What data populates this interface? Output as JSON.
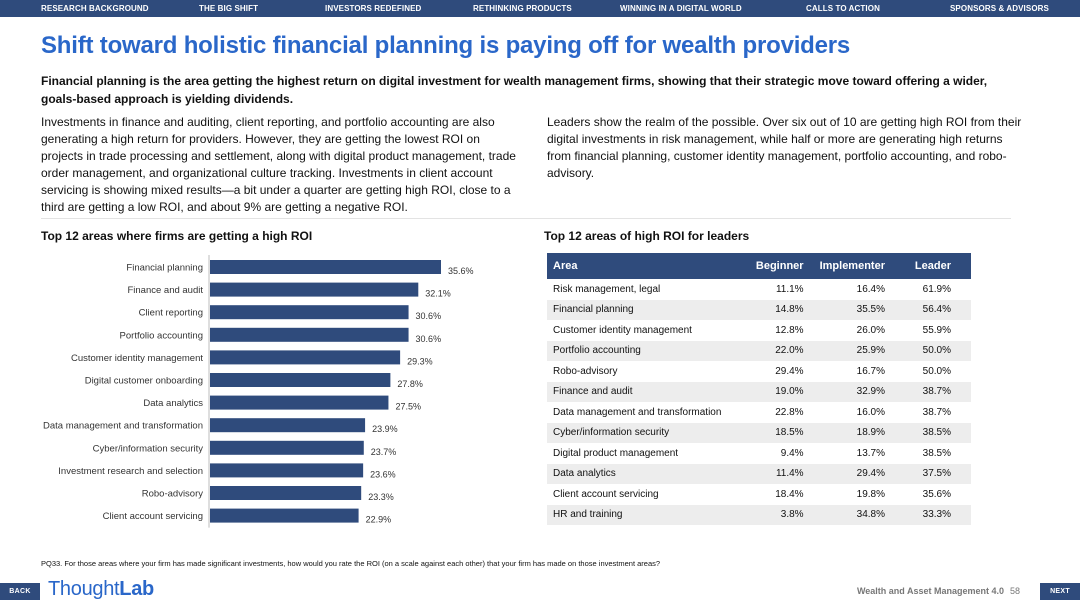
{
  "nav": {
    "items": [
      "RESEARCH BACKGROUND",
      "THE BIG SHIFT",
      "INVESTORS REDEFINED",
      "RETHINKING PRODUCTS",
      "WINNING IN A DIGITAL WORLD",
      "CALLS TO ACTION",
      "SPONSORS & ADVISORS"
    ]
  },
  "title": "Shift toward holistic financial planning is paying off for wealth providers",
  "subtitle": "Financial planning is the area getting the highest return on digital investment for wealth management firms, showing that their strategic move toward offering a wider, goals-based approach is yielding dividends.",
  "body_left": "Investments in finance and auditing, client reporting, and portfolio accounting are also generating a high return for providers. However, they are getting the lowest ROI on projects in trade processing and settlement, along with digital product management, trade order management, and organizational culture tracking. Investments in client account servicing is showing mixed results—a bit under a quarter are getting high ROI, close to a third are getting a low ROI, and about 9% are getting a negative ROI.",
  "body_right": "Leaders show the realm of the possible. Over six out of 10 are getting high ROI from their digital investments in risk management, while half or more are generating high returns from financial planning, customer identity management, portfolio accounting, and robo-advisory.",
  "chart_title": "Top 12 areas where firms are getting a high ROI",
  "table_title": "Top 12 areas of high ROI for leaders",
  "chart_data": {
    "type": "bar",
    "orientation": "horizontal",
    "title": "Top 12 areas where firms are getting a high ROI",
    "categories": [
      "Financial planning",
      "Finance and audit",
      "Client reporting",
      "Portfolio accounting",
      "Customer identity management",
      "Digital customer onboarding",
      "Data analytics",
      "Data management and transformation",
      "Cyber/information security",
      "Investment research and selection",
      "Robo-advisory",
      "Client account servicing"
    ],
    "values": [
      35.6,
      32.1,
      30.6,
      30.6,
      29.3,
      27.8,
      27.5,
      23.9,
      23.7,
      23.6,
      23.3,
      22.9
    ],
    "value_labels": [
      "35.6%",
      "32.1%",
      "30.6%",
      "30.6%",
      "29.3%",
      "27.8%",
      "27.5%",
      "23.9%",
      "23.7%",
      "23.6%",
      "23.3%",
      "22.9%"
    ],
    "xlim": [
      0,
      40
    ],
    "bar_color": "#2f4b7c"
  },
  "table": {
    "headers": [
      "Area",
      "Beginner",
      "Implementer",
      "Leader"
    ],
    "rows": [
      [
        "Risk management, legal",
        "11.1%",
        "16.4%",
        "61.9%"
      ],
      [
        "Financial planning",
        "14.8%",
        "35.5%",
        "56.4%"
      ],
      [
        "Customer identity  management",
        "12.8%",
        "26.0%",
        "55.9%"
      ],
      [
        "Portfolio accounting",
        "22.0%",
        "25.9%",
        "50.0%"
      ],
      [
        "Robo-advisory",
        "29.4%",
        "16.7%",
        "50.0%"
      ],
      [
        "Finance and audit",
        "19.0%",
        "32.9%",
        "38.7%"
      ],
      [
        "Data management and transformation",
        "22.8%",
        "16.0%",
        "38.7%"
      ],
      [
        "Cyber/information security",
        "18.5%",
        "18.9%",
        "38.5%"
      ],
      [
        "Digital product management",
        "9.4%",
        "13.7%",
        "38.5%"
      ],
      [
        "Data analytics",
        "11.4%",
        "29.4%",
        "37.5%"
      ],
      [
        "Client account servicing",
        "18.4%",
        "19.8%",
        "35.6%"
      ],
      [
        "HR and training",
        "3.8%",
        "34.8%",
        "33.3%"
      ]
    ]
  },
  "footnote": "PQ33. For those areas where your firm has made significant investments, how would you rate the ROI (on a scale against each other) that your firm has made on those investment areas?",
  "footer": {
    "back_label": "BACK",
    "next_label": "NEXT",
    "logo_part1": "Thought",
    "logo_part2": "Lab",
    "publication": "Wealth and Asset Management 4.0",
    "page_number": "58"
  },
  "colors": {
    "nav_bg": "#2f4b7c",
    "title": "#2a67c9",
    "bar": "#2f4b7c",
    "table_alt_row": "#ededed"
  }
}
